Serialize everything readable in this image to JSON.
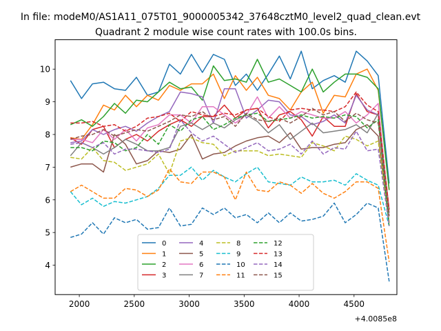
{
  "chart_data": {
    "type": "line",
    "suptitle": "In file: modeM0/AS1A11_075T01_9000005342_37648cztM0_level2_quad_clean.evt",
    "title": "Quadrant 2 module wise count rates with 100.0s bins.",
    "xlabel": "",
    "ylabel": "",
    "offset_text": "+4.0085e8",
    "xlim": [
      1780,
      4890
    ],
    "ylim": [
      3.1,
      10.9
    ],
    "xticks": [
      2000,
      2500,
      3000,
      3500,
      4000,
      4500
    ],
    "yticks": [
      4,
      5,
      6,
      7,
      8,
      9,
      10
    ],
    "xtick_labels": [
      "2000",
      "2500",
      "3000",
      "3500",
      "4000",
      "4500"
    ],
    "ytick_labels": [
      "4",
      "5",
      "6",
      "7",
      "8",
      "9",
      "10"
    ],
    "grid": false,
    "legend": {
      "placement": "lower center",
      "ncol": 4
    },
    "x": [
      1920,
      2020,
      2120,
      2220,
      2320,
      2420,
      2520,
      2620,
      2720,
      2820,
      2920,
      3020,
      3120,
      3220,
      3320,
      3420,
      3520,
      3620,
      3720,
      3820,
      3920,
      4020,
      4120,
      4220,
      4320,
      4420,
      4520,
      4620,
      4720,
      4820
    ],
    "series": [
      {
        "name": "0",
        "color": "#1f77b4",
        "dash": "solid",
        "values": [
          9.65,
          9.1,
          9.55,
          9.6,
          9.4,
          9.35,
          9.75,
          9.2,
          9.3,
          10.15,
          9.85,
          10.45,
          9.9,
          10.45,
          10.3,
          9.5,
          9.85,
          9.35,
          9.85,
          10.4,
          9.7,
          10.55,
          9.4,
          9.65,
          9.8,
          9.6,
          10.55,
          10.25,
          9.8,
          6.5
        ]
      },
      {
        "name": "1",
        "color": "#ff7f0e",
        "dash": "solid",
        "values": [
          7.9,
          7.85,
          8.3,
          8.9,
          8.75,
          9.2,
          8.85,
          9.2,
          9.05,
          9.5,
          9.35,
          9.55,
          9.55,
          9.85,
          9.1,
          9.8,
          9.35,
          9.75,
          9.2,
          9.1,
          8.75,
          9.3,
          9.6,
          8.65,
          9.2,
          9.15,
          9.85,
          10.0,
          9.35,
          6.3
        ]
      },
      {
        "name": "2",
        "color": "#2ca02c",
        "dash": "solid",
        "values": [
          8.3,
          8.45,
          8.25,
          8.55,
          8.95,
          8.65,
          9.05,
          9.0,
          9.3,
          9.6,
          9.4,
          9.45,
          9.05,
          10.1,
          9.65,
          9.7,
          9.6,
          10.3,
          9.6,
          9.7,
          9.5,
          9.3,
          10.0,
          9.3,
          9.6,
          9.85,
          9.85,
          9.75,
          9.4,
          6.3
        ]
      },
      {
        "name": "3",
        "color": "#d62728",
        "dash": "solid",
        "values": [
          7.9,
          7.7,
          8.15,
          8.25,
          7.6,
          7.85,
          8.0,
          7.8,
          8.1,
          8.3,
          8.45,
          8.25,
          8.55,
          8.55,
          8.9,
          8.5,
          8.75,
          8.8,
          8.2,
          8.6,
          8.7,
          8.45,
          7.95,
          8.55,
          8.25,
          8.25,
          9.25,
          8.7,
          8.6,
          5.7
        ]
      },
      {
        "name": "4",
        "color": "#9467bd",
        "dash": "solid",
        "values": [
          7.75,
          7.8,
          8.15,
          8.0,
          8.15,
          8.25,
          8.1,
          8.35,
          8.55,
          8.7,
          9.3,
          9.25,
          9.15,
          8.35,
          9.4,
          9.4,
          8.5,
          8.75,
          9.05,
          9.0,
          8.6,
          8.55,
          8.3,
          8.4,
          8.6,
          8.35,
          9.2,
          8.75,
          8.6,
          5.5
        ]
      },
      {
        "name": "5",
        "color": "#8c564b",
        "dash": "solid",
        "values": [
          7.0,
          7.1,
          7.1,
          6.85,
          8.0,
          7.7,
          7.1,
          7.2,
          7.5,
          7.45,
          7.55,
          8.0,
          7.25,
          7.4,
          7.45,
          7.65,
          7.8,
          7.9,
          7.95,
          7.75,
          8.05,
          7.55,
          7.6,
          7.6,
          7.7,
          7.75,
          8.15,
          8.3,
          7.95,
          5.3
        ]
      },
      {
        "name": "6",
        "color": "#e377c2",
        "dash": "solid",
        "values": [
          7.85,
          7.85,
          7.75,
          8.15,
          7.85,
          8.15,
          7.8,
          8.2,
          8.3,
          8.6,
          8.6,
          8.35,
          8.85,
          8.85,
          8.6,
          8.35,
          8.6,
          9.15,
          8.5,
          8.85,
          8.5,
          8.7,
          8.6,
          8.5,
          8.5,
          8.7,
          8.35,
          8.6,
          8.95,
          5.5
        ]
      },
      {
        "name": "7",
        "color": "#7f7f7f",
        "dash": "solid",
        "values": [
          7.35,
          7.75,
          7.6,
          7.4,
          7.6,
          7.85,
          7.7,
          7.5,
          7.5,
          7.6,
          8.25,
          8.35,
          8.15,
          8.35,
          8.2,
          8.45,
          8.6,
          8.4,
          8.05,
          8.3,
          7.85,
          8.1,
          8.35,
          8.05,
          8.1,
          8.15,
          8.3,
          8.05,
          8.65,
          5.6
        ]
      },
      {
        "name": "8",
        "color": "#bcbd22",
        "dash": "dashed",
        "values": [
          7.3,
          7.25,
          7.6,
          7.2,
          7.15,
          6.9,
          7.0,
          7.1,
          7.4,
          6.8,
          7.8,
          7.9,
          7.75,
          7.7,
          7.35,
          7.5,
          7.5,
          7.5,
          7.35,
          7.4,
          7.35,
          7.3,
          7.75,
          7.65,
          7.5,
          7.95,
          7.85,
          7.65,
          7.8,
          5.3
        ]
      },
      {
        "name": "9",
        "color": "#17becf",
        "dash": "dashed",
        "values": [
          6.25,
          5.85,
          6.05,
          5.8,
          5.95,
          5.9,
          6.0,
          6.1,
          6.35,
          6.75,
          6.75,
          7.0,
          6.6,
          6.9,
          6.7,
          6.55,
          6.8,
          7.0,
          6.55,
          6.5,
          6.45,
          6.7,
          6.55,
          6.55,
          6.6,
          6.45,
          6.8,
          6.6,
          6.45,
          5.2
        ]
      },
      {
        "name": "10",
        "color": "#1f77b4",
        "dash": "dashed",
        "values": [
          4.85,
          4.95,
          5.3,
          4.95,
          5.45,
          5.3,
          5.4,
          5.1,
          5.15,
          5.75,
          5.2,
          5.25,
          5.75,
          5.55,
          5.75,
          5.45,
          5.55,
          5.3,
          5.6,
          5.3,
          5.6,
          5.35,
          5.4,
          5.5,
          5.9,
          5.3,
          5.55,
          5.9,
          5.75,
          3.5
        ]
      },
      {
        "name": "11",
        "color": "#ff7f0e",
        "dash": "dashed",
        "values": [
          6.25,
          6.45,
          6.25,
          6.05,
          6.05,
          6.35,
          6.3,
          6.1,
          6.3,
          6.95,
          6.55,
          6.5,
          6.85,
          6.85,
          6.7,
          6.0,
          6.85,
          6.3,
          6.25,
          6.55,
          6.45,
          6.2,
          6.5,
          6.2,
          6.05,
          6.25,
          6.55,
          6.55,
          6.35,
          4.1
        ]
      },
      {
        "name": "12",
        "color": "#2ca02c",
        "dash": "dashed",
        "values": [
          7.6,
          7.6,
          7.5,
          7.8,
          7.75,
          7.5,
          7.6,
          8.0,
          7.7,
          8.3,
          8.1,
          8.45,
          8.55,
          8.15,
          8.3,
          8.5,
          8.6,
          8.65,
          8.4,
          8.45,
          8.5,
          8.6,
          8.5,
          8.55,
          8.5,
          8.6,
          8.55,
          8.2,
          8.45,
          5.2
        ]
      },
      {
        "name": "13",
        "color": "#d62728",
        "dash": "dashed",
        "values": [
          8.35,
          8.35,
          8.4,
          8.25,
          8.3,
          8.1,
          8.25,
          8.5,
          8.55,
          8.65,
          8.4,
          8.7,
          8.6,
          8.55,
          8.65,
          8.6,
          8.75,
          8.8,
          8.55,
          8.4,
          8.75,
          8.8,
          8.75,
          8.75,
          8.7,
          8.85,
          9.3,
          8.9,
          8.7,
          5.7
        ]
      },
      {
        "name": "14",
        "color": "#9467bd",
        "dash": "dashed",
        "values": [
          7.7,
          7.75,
          7.6,
          7.75,
          7.4,
          7.55,
          7.55,
          7.5,
          7.45,
          7.55,
          8.45,
          8.05,
          7.8,
          7.95,
          7.7,
          7.45,
          7.6,
          7.75,
          7.5,
          7.55,
          7.7,
          7.4,
          7.8,
          7.4,
          7.6,
          7.55,
          8.1,
          7.5,
          7.55,
          5.2
        ]
      },
      {
        "name": "15",
        "color": "#8c564b",
        "dash": "dashed",
        "values": [
          7.85,
          7.95,
          8.0,
          8.15,
          7.95,
          8.05,
          8.15,
          8.1,
          8.25,
          8.4,
          8.6,
          8.55,
          8.7,
          8.45,
          8.55,
          8.25,
          8.65,
          8.45,
          8.4,
          8.5,
          8.35,
          8.55,
          8.8,
          8.6,
          8.7,
          8.4,
          8.65,
          8.45,
          8.35,
          5.5
        ]
      }
    ]
  }
}
